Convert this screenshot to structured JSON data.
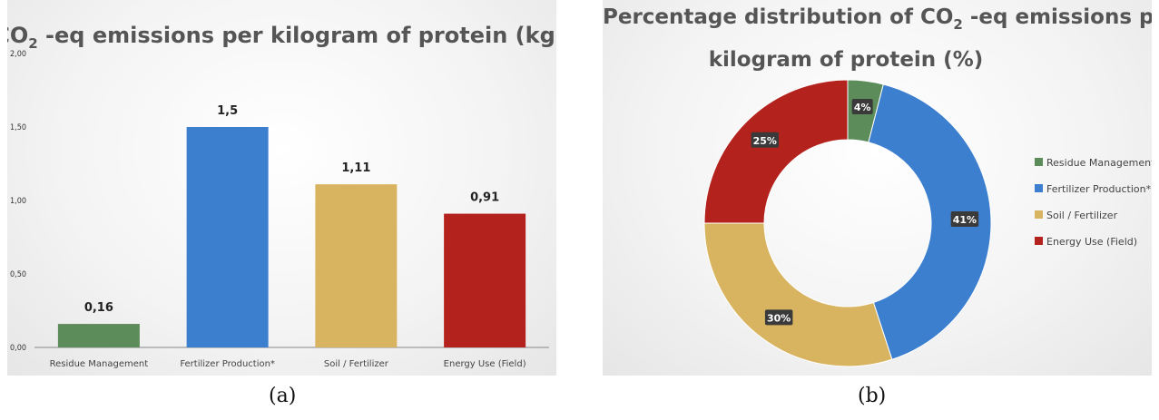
{
  "captions": {
    "a": "(a)",
    "b": "(b)"
  },
  "chart_data": [
    {
      "type": "bar",
      "title_main": "CO",
      "title_sub": "2",
      "title_rest": " -eq emissions per kilogram of protein (kg)",
      "categories": [
        "Residue Management",
        "Fertilizer Production*",
        "Soil / Fertilizer",
        "Energy Use (Field)"
      ],
      "values": [
        0.16,
        1.5,
        1.11,
        0.91
      ],
      "value_labels": [
        "0,16",
        "1,5",
        "1,11",
        "0,91"
      ],
      "y_ticks": [
        "0,00",
        "0,50",
        "1,00",
        "1,50",
        "2,00"
      ],
      "ylim": [
        0,
        2
      ],
      "colors": [
        "#5b8c5a",
        "#3c7fcf",
        "#d9b460",
        "#b3221c"
      ],
      "grid": false,
      "legend": "none"
    },
    {
      "type": "pie",
      "variant": "donut",
      "title_line1_main": "Percentage distribution of CO",
      "title_line1_sub": "2",
      "title_line1_rest": " -eq emissions per",
      "title_line2": "kilogram of protein (%)",
      "categories": [
        "Residue Management",
        "Fertilizer Production*",
        "Soil / Fertilizer",
        "Energy Use (Field)"
      ],
      "values": [
        4,
        41,
        30,
        25
      ],
      "value_labels": [
        "4%",
        "41%",
        "30%",
        "25%"
      ],
      "colors": [
        "#5b8c5a",
        "#3c7fcf",
        "#d9b460",
        "#b3221c"
      ],
      "legend": "right"
    }
  ]
}
